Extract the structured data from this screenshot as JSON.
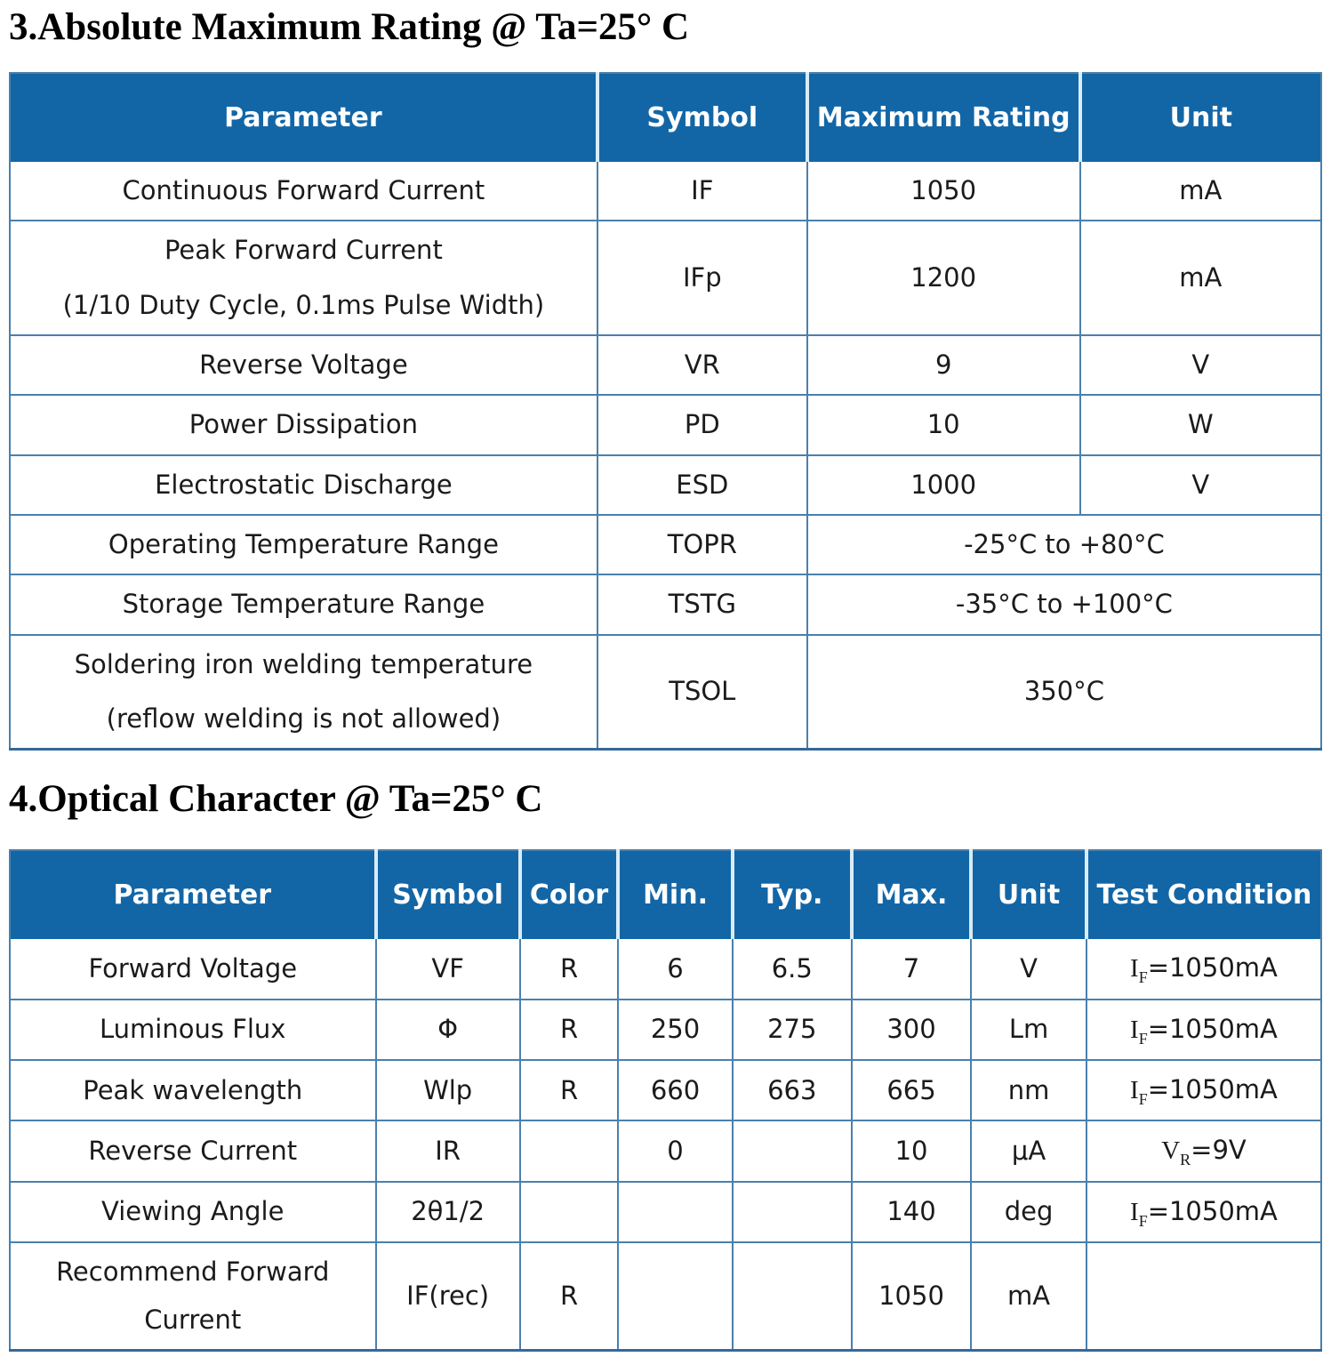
{
  "colors": {
    "header_bg": "#1366a6",
    "header_text": "#ffffff",
    "border": "#4a80ad",
    "border_dark": "#35689a",
    "header_separator": "#d9ecf8",
    "text": "#1b1b1b",
    "title": "#000000",
    "page_bg": "#ffffff"
  },
  "section3": {
    "title": "3.Absolute Maximum Rating @ Ta=25° C",
    "table": {
      "headers": [
        "Parameter",
        "Symbol",
        "Maximum Rating",
        "Unit"
      ],
      "rows": [
        {
          "cells": [
            {
              "text": "Continuous Forward Current"
            },
            {
              "text": "IF"
            },
            {
              "text": "1050"
            },
            {
              "text": "mA"
            }
          ]
        },
        {
          "cells": [
            {
              "lines": [
                "Peak Forward Current",
                "(1/10 Duty Cycle, 0.1ms Pulse Width)"
              ]
            },
            {
              "text": "IFp"
            },
            {
              "text": "1200"
            },
            {
              "text": "mA"
            }
          ]
        },
        {
          "cells": [
            {
              "text": "Reverse Voltage"
            },
            {
              "text": "VR"
            },
            {
              "text": "9"
            },
            {
              "text": "V"
            }
          ]
        },
        {
          "cells": [
            {
              "text": "Power Dissipation"
            },
            {
              "text": "PD"
            },
            {
              "text": "10"
            },
            {
              "text": "W"
            }
          ]
        },
        {
          "cells": [
            {
              "text": "Electrostatic Discharge"
            },
            {
              "text": "ESD"
            },
            {
              "text": "1000"
            },
            {
              "text": "V"
            }
          ]
        },
        {
          "cells": [
            {
              "text": "Operating Temperature Range"
            },
            {
              "text": "TOPR"
            },
            {
              "text": "-25°C to +80°C",
              "colspan": 2
            }
          ]
        },
        {
          "cells": [
            {
              "text": "Storage Temperature Range"
            },
            {
              "text": "TSTG"
            },
            {
              "text": "-35°C to +100°C",
              "colspan": 2
            }
          ]
        },
        {
          "cells": [
            {
              "lines": [
                "Soldering iron welding temperature",
                "(reflow welding is not allowed)"
              ]
            },
            {
              "text": "TSOL"
            },
            {
              "text": "350°C",
              "colspan": 2
            }
          ]
        }
      ]
    }
  },
  "section4": {
    "title": "4.Optical Character @ Ta=25° C",
    "table": {
      "headers": [
        "Parameter",
        "Symbol",
        "Color",
        "Min.",
        "Typ.",
        "Max.",
        "Unit",
        "Test Condition"
      ],
      "rows": [
        {
          "cells": [
            {
              "text": "Forward Voltage"
            },
            {
              "text": "VF"
            },
            {
              "text": "R"
            },
            {
              "text": "6"
            },
            {
              "text": "6.5"
            },
            {
              "text": "7"
            },
            {
              "text": "V"
            },
            {
              "rich": [
                {
                  "t": "I",
                  "serif": true
                },
                {
                  "t": "F",
                  "sub": true,
                  "serif": true
                },
                {
                  "t": "=1050mA"
                }
              ]
            }
          ]
        },
        {
          "cells": [
            {
              "text": "Luminous Flux"
            },
            {
              "text": "Φ"
            },
            {
              "text": "R"
            },
            {
              "text": "250"
            },
            {
              "text": "275"
            },
            {
              "text": "300"
            },
            {
              "text": "Lm"
            },
            {
              "rich": [
                {
                  "t": "I",
                  "serif": true
                },
                {
                  "t": "F",
                  "sub": true,
                  "serif": true
                },
                {
                  "t": "=1050mA"
                }
              ]
            }
          ]
        },
        {
          "cells": [
            {
              "text": "Peak wavelength"
            },
            {
              "text": "Wlp"
            },
            {
              "text": "R"
            },
            {
              "text": "660"
            },
            {
              "text": "663"
            },
            {
              "text": "665"
            },
            {
              "text": "nm"
            },
            {
              "rich": [
                {
                  "t": "I",
                  "serif": true
                },
                {
                  "t": "F",
                  "sub": true,
                  "serif": true
                },
                {
                  "t": "=1050mA"
                }
              ]
            }
          ]
        },
        {
          "cells": [
            {
              "text": "Reverse Current"
            },
            {
              "text": "IR"
            },
            {
              "text": ""
            },
            {
              "text": "0"
            },
            {
              "text": ""
            },
            {
              "text": "10"
            },
            {
              "text": "μA"
            },
            {
              "rich": [
                {
                  "t": "V",
                  "serif": true
                },
                {
                  "t": "R",
                  "sub": true,
                  "serif": true
                },
                {
                  "t": "=9V"
                }
              ]
            }
          ]
        },
        {
          "cells": [
            {
              "text": "Viewing Angle"
            },
            {
              "text": "2θ1/2"
            },
            {
              "text": ""
            },
            {
              "text": ""
            },
            {
              "text": ""
            },
            {
              "text": "140"
            },
            {
              "text": "deg"
            },
            {
              "rich": [
                {
                  "t": "I",
                  "serif": true
                },
                {
                  "t": "F",
                  "sub": true,
                  "serif": true
                },
                {
                  "t": "=1050mA"
                }
              ]
            }
          ]
        },
        {
          "cells": [
            {
              "lines": [
                "Recommend Forward",
                "Current"
              ]
            },
            {
              "text": "IF(rec)"
            },
            {
              "text": "R",
              "top": true
            },
            {
              "text": ""
            },
            {
              "text": ""
            },
            {
              "text": "1050"
            },
            {
              "text": "mA"
            },
            {
              "text": ""
            }
          ]
        }
      ]
    }
  }
}
